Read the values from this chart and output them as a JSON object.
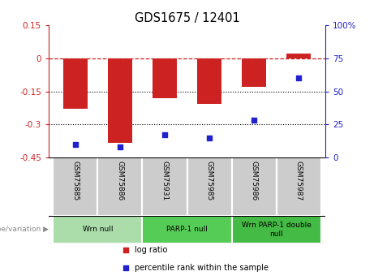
{
  "title": "GDS1675 / 12401",
  "samples": [
    "GSM75885",
    "GSM75886",
    "GSM75931",
    "GSM75985",
    "GSM75986",
    "GSM75987"
  ],
  "log_ratio": [
    -0.23,
    -0.385,
    -0.18,
    -0.205,
    -0.13,
    0.02
  ],
  "percentile": [
    10,
    8,
    17,
    15,
    28,
    60
  ],
  "ylim_left": [
    -0.45,
    0.15
  ],
  "ylim_right": [
    0,
    100
  ],
  "yticks_left": [
    0.15,
    0,
    -0.15,
    -0.3,
    -0.45
  ],
  "yticks_right": [
    100,
    75,
    50,
    25,
    0
  ],
  "ytick_labels_left": [
    "0.15",
    "0",
    "-0.15",
    "-0.3",
    "-0.45"
  ],
  "ytick_labels_right": [
    "100%",
    "75",
    "50",
    "25",
    "0"
  ],
  "hlines_dotted": [
    -0.15,
    -0.3
  ],
  "hline_dashed": 0,
  "bar_color": "#cc2222",
  "scatter_color": "#2222cc",
  "bar_width": 0.55,
  "groups": [
    {
      "label": "Wrn null",
      "samples": [
        0,
        1
      ],
      "color": "#aaddaa"
    },
    {
      "label": "PARP-1 null",
      "samples": [
        2,
        3
      ],
      "color": "#55cc55"
    },
    {
      "label": "Wrn PARP-1 double\nnull",
      "samples": [
        4,
        5
      ],
      "color": "#44bb44"
    }
  ],
  "legend_items": [
    {
      "label": "log ratio",
      "color": "#cc2222"
    },
    {
      "label": "percentile rank within the sample",
      "color": "#2222cc"
    }
  ],
  "genotype_label": "genotype/variation"
}
